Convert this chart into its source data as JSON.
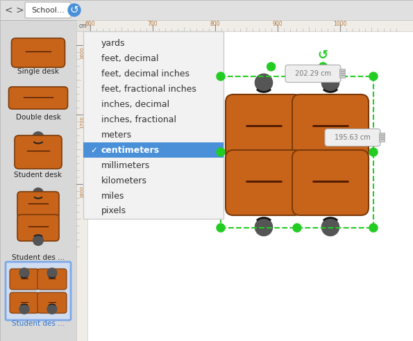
{
  "canvas_color": "#ffffff",
  "sidebar_color": "#d8d8d8",
  "desk_orange": "#c8641a",
  "desk_outline": "#7a3a0a",
  "chair_color": "#555555",
  "green_dot": "#22cc22",
  "blue_highlight": "#4a90d9",
  "blue_selected_text": "#3377cc",
  "menu_bg": "#f2f2f2",
  "menu_selected_bg": "#4a90d9",
  "ruler_bg": "#f0ede8",
  "ruler_text": "#b07840",
  "toolbar_bg": "#e0e0e0",
  "menu_items": [
    "yards",
    "feet, decimal",
    "feet, decimal inches",
    "feet, fractional inches",
    "inches, decimal",
    "inches, fractional",
    "meters",
    "centimeters",
    "millimeters",
    "kilometers",
    "miles",
    "pixels"
  ],
  "selected_item": "centimeters",
  "sidebar_labels": [
    "Single desk",
    "Double desk",
    "Student desk",
    "Student des ...",
    "Student des ..."
  ],
  "dim_label1": "202.29 cm",
  "dim_label2": "195.63 cm",
  "toolbar_label": "School...",
  "ruler_ticks_top": [
    600,
    700,
    800,
    900,
    1000
  ],
  "ruler_ticks_side": [
    1600,
    1700,
    1800
  ]
}
